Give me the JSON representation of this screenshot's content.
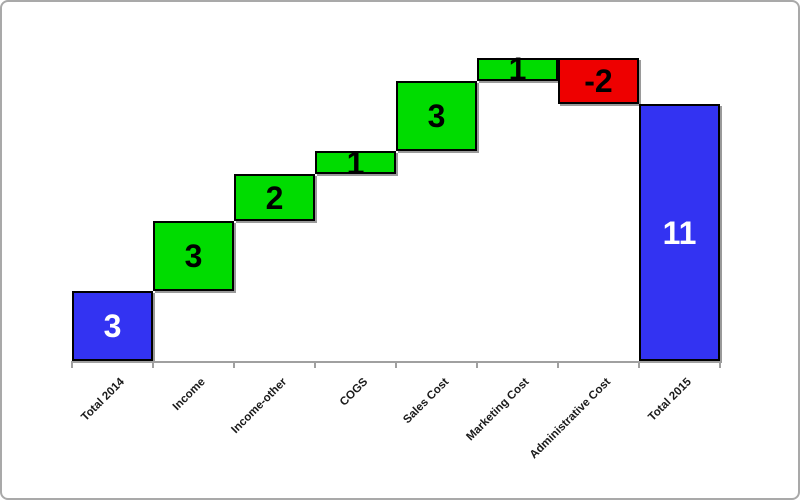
{
  "chart_data": {
    "type": "bar",
    "subtype": "waterfall",
    "title": "",
    "categories": [
      "Total 2014",
      "Income",
      "Income-other",
      "COGS",
      "Sales Cost",
      "Marketing Cost",
      "Administrative Cost",
      "Total 2015"
    ],
    "values": [
      3,
      3,
      2,
      1,
      3,
      1,
      -2,
      11
    ],
    "bar_roles": [
      "total",
      "increase",
      "increase",
      "increase",
      "increase",
      "increase",
      "decrease",
      "total"
    ],
    "bar_labels": [
      "3",
      "3",
      "2",
      "1",
      "3",
      "1",
      "-2",
      "11"
    ],
    "cumulative_spans": [
      [
        0,
        3
      ],
      [
        3,
        6
      ],
      [
        6,
        8
      ],
      [
        8,
        9
      ],
      [
        9,
        12
      ],
      [
        12,
        13
      ],
      [
        11,
        13
      ],
      [
        0,
        11
      ]
    ],
    "ylim": [
      0,
      14
    ],
    "grid": false,
    "legend": false,
    "y_axis_visible": false,
    "x_tick_count": 9,
    "colors": {
      "total_bar": "#3333F2",
      "increase_bar": "#00DC00",
      "decrease_bar": "#EE0000",
      "bar_border": "#000000",
      "value_text_on_total": "#FFFFFF",
      "value_text_on_change": "#000000",
      "axis": "#A0A0A0",
      "tick": "#A0A0A0",
      "x_label_text": "#1A1A1A",
      "frame_border": "#A9A9A9",
      "background": "#FFFFFF"
    }
  }
}
